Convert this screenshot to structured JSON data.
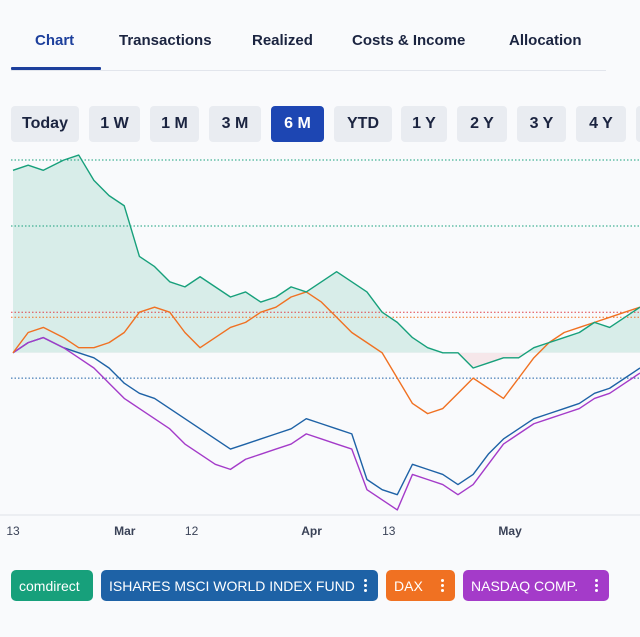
{
  "tabs": [
    {
      "label": "Chart",
      "active": true
    },
    {
      "label": "Transactions",
      "active": false
    },
    {
      "label": "Realized",
      "active": false
    },
    {
      "label": "Costs & Income",
      "active": false
    },
    {
      "label": "Allocation",
      "active": false
    }
  ],
  "ranges": [
    {
      "label": "Today",
      "active": false
    },
    {
      "label": "1 W",
      "active": false
    },
    {
      "label": "1 M",
      "active": false
    },
    {
      "label": "3 M",
      "active": false
    },
    {
      "label": "6 M",
      "active": true
    },
    {
      "label": "YTD",
      "active": false
    },
    {
      "label": "1 Y",
      "active": false
    },
    {
      "label": "2 Y",
      "active": false
    },
    {
      "label": "3 Y",
      "active": false
    },
    {
      "label": "4 Y",
      "active": false
    }
  ],
  "colors": {
    "comdirect": "#17a07b",
    "ishares": "#1e62a6",
    "dax": "#f07122",
    "nasdaq": "#a43bc9",
    "active_tab": "#1d3f9c",
    "active_range": "#1d46b3"
  },
  "legend": [
    {
      "label": "comdirect",
      "color": "#17a07b",
      "has_menu": false
    },
    {
      "label": "ISHARES MSCI WORLD INDEX FUND",
      "color": "#1e62a6",
      "has_menu": true,
      "menu_icon": "kebab-icon"
    },
    {
      "label": "DAX",
      "color": "#f07122",
      "has_menu": true,
      "menu_icon": "kebab-icon"
    },
    {
      "label": "NASDAQ COMP.",
      "color": "#a43bc9",
      "has_menu": true,
      "menu_icon": "kebab-icon"
    }
  ],
  "chart_data": {
    "type": "line",
    "x_tick_labels": [
      "13",
      "Mar",
      "12",
      "Apr",
      "13",
      "May"
    ],
    "x": [
      0,
      3,
      6,
      10,
      13,
      16,
      19,
      22,
      25,
      28,
      31,
      34,
      37,
      40,
      43,
      46,
      49,
      52,
      55,
      58,
      61,
      64,
      67,
      70,
      73,
      76,
      79,
      82,
      85,
      88,
      91,
      94,
      97,
      100,
      103,
      106,
      109,
      112,
      115,
      118,
      121,
      124
    ],
    "ylim": [
      -32,
      40
    ],
    "baseline": 0,
    "reference_lines": [
      {
        "value": 25,
        "style": "dotted",
        "color": "#17a07b"
      },
      {
        "value": 8,
        "style": "dotted",
        "color": "#e0404a"
      },
      {
        "value": 7,
        "style": "dotted",
        "color": "#f07122"
      },
      {
        "value": -5,
        "style": "dotted",
        "color": "#1e62a6"
      }
    ],
    "series": [
      {
        "name": "comdirect",
        "color": "#17a07b",
        "area": true,
        "values": [
          36,
          37,
          36,
          38,
          39,
          34,
          31,
          29,
          19,
          17,
          14,
          13,
          15,
          13,
          11,
          12,
          10,
          11,
          13,
          12,
          14,
          16,
          14,
          12,
          8,
          6,
          3,
          1,
          0,
          0,
          -3,
          -2,
          -1,
          -1,
          1,
          2,
          3,
          4,
          6,
          5,
          7,
          9
        ]
      },
      {
        "name": "ISHARES MSCI WORLD INDEX FUND",
        "color": "#1e62a6",
        "area": false,
        "values": [
          0,
          2,
          3,
          1,
          0,
          -1,
          -3,
          -6,
          -8,
          -9,
          -11,
          -13,
          -15,
          -17,
          -19,
          -18,
          -17,
          -16,
          -15,
          -13,
          -14,
          -15,
          -16,
          -25,
          -27,
          -28,
          -22,
          -23,
          -24,
          -26,
          -24,
          -20,
          -17,
          -15,
          -13,
          -12,
          -11,
          -10,
          -8,
          -7,
          -5,
          -3
        ]
      },
      {
        "name": "DAX",
        "color": "#f07122",
        "area": false,
        "values": [
          0,
          4,
          5,
          3,
          1,
          1,
          2,
          4,
          8,
          9,
          8,
          4,
          1,
          3,
          5,
          6,
          8,
          9,
          11,
          12,
          10,
          7,
          4,
          2,
          0,
          -5,
          -10,
          -12,
          -11,
          -8,
          -5,
          -7,
          -9,
          -5,
          -1,
          2,
          4,
          5,
          6,
          7,
          8,
          9
        ]
      },
      {
        "name": "NASDAQ COMP.",
        "color": "#a43bc9",
        "area": false,
        "values": [
          0,
          2,
          3,
          1,
          -1,
          -3,
          -6,
          -9,
          -11,
          -13,
          -15,
          -18,
          -20,
          -22,
          -23,
          -21,
          -20,
          -19,
          -18,
          -16,
          -17,
          -18,
          -19,
          -27,
          -29,
          -31,
          -24,
          -25,
          -26,
          -28,
          -26,
          -22,
          -18,
          -16,
          -14,
          -13,
          -12,
          -11,
          -9,
          -8,
          -6,
          -4
        ]
      }
    ]
  }
}
